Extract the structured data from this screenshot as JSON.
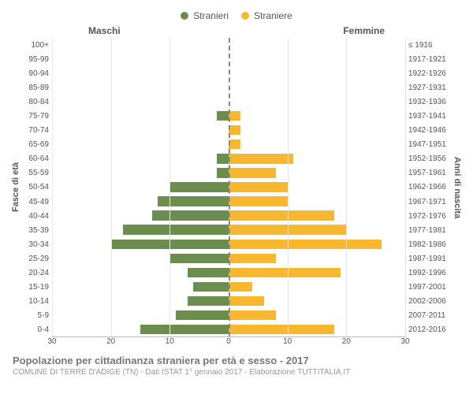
{
  "type": "population-pyramid",
  "legend": {
    "male_label": "Stranieri",
    "female_label": "Straniere",
    "male_color": "#6b8e4e",
    "female_color": "#f7b72f"
  },
  "headers": {
    "left": "Maschi",
    "right": "Femmine"
  },
  "axis_titles": {
    "left": "Fasce di età",
    "right": "Anni di nascita"
  },
  "x_axis": {
    "max": 30,
    "ticks": [
      30,
      20,
      10,
      0,
      10,
      20,
      30
    ],
    "tick_positions_pct": [
      0,
      16.67,
      33.33,
      50,
      66.67,
      83.33,
      100
    ],
    "gridlines_pct": [
      0,
      16.67,
      33.33,
      50,
      66.67,
      83.33,
      100
    ]
  },
  "rows": [
    {
      "age": "100+",
      "birth": "≤ 1916",
      "m": 0,
      "f": 0
    },
    {
      "age": "95-99",
      "birth": "1917-1921",
      "m": 0,
      "f": 0
    },
    {
      "age": "90-94",
      "birth": "1922-1926",
      "m": 0,
      "f": 0
    },
    {
      "age": "85-89",
      "birth": "1927-1931",
      "m": 0,
      "f": 0
    },
    {
      "age": "80-84",
      "birth": "1932-1936",
      "m": 0,
      "f": 0
    },
    {
      "age": "75-79",
      "birth": "1937-1941",
      "m": 2,
      "f": 2
    },
    {
      "age": "70-74",
      "birth": "1942-1946",
      "m": 0,
      "f": 2
    },
    {
      "age": "65-69",
      "birth": "1947-1951",
      "m": 0,
      "f": 2
    },
    {
      "age": "60-64",
      "birth": "1952-1956",
      "m": 2,
      "f": 11
    },
    {
      "age": "55-59",
      "birth": "1957-1961",
      "m": 2,
      "f": 8
    },
    {
      "age": "50-54",
      "birth": "1962-1966",
      "m": 10,
      "f": 10
    },
    {
      "age": "45-49",
      "birth": "1967-1971",
      "m": 12,
      "f": 10
    },
    {
      "age": "40-44",
      "birth": "1972-1976",
      "m": 13,
      "f": 18
    },
    {
      "age": "35-39",
      "birth": "1977-1981",
      "m": 18,
      "f": 20
    },
    {
      "age": "30-34",
      "birth": "1982-1986",
      "m": 20,
      "f": 26
    },
    {
      "age": "25-29",
      "birth": "1987-1991",
      "m": 10,
      "f": 8
    },
    {
      "age": "20-24",
      "birth": "1992-1996",
      "m": 7,
      "f": 19
    },
    {
      "age": "15-19",
      "birth": "1997-2001",
      "m": 6,
      "f": 4
    },
    {
      "age": "10-14",
      "birth": "2002-2006",
      "m": 7,
      "f": 6
    },
    {
      "age": "5-9",
      "birth": "2007-2011",
      "m": 9,
      "f": 8
    },
    {
      "age": "0-4",
      "birth": "2012-2016",
      "m": 15,
      "f": 18
    }
  ],
  "footer": {
    "title": "Popolazione per cittadinanza straniera per età e sesso - 2017",
    "subtitle": "COMUNE DI TERRE D'ADIGE (TN) - Dati ISTAT 1° gennaio 2017 - Elaborazione TUTTITALIA.IT"
  },
  "colors": {
    "grid": "#e5e5e5",
    "centerline": "#888888",
    "background": "#ffffff",
    "text": "#555555",
    "title": "#777777",
    "subtitle": "#999999"
  }
}
